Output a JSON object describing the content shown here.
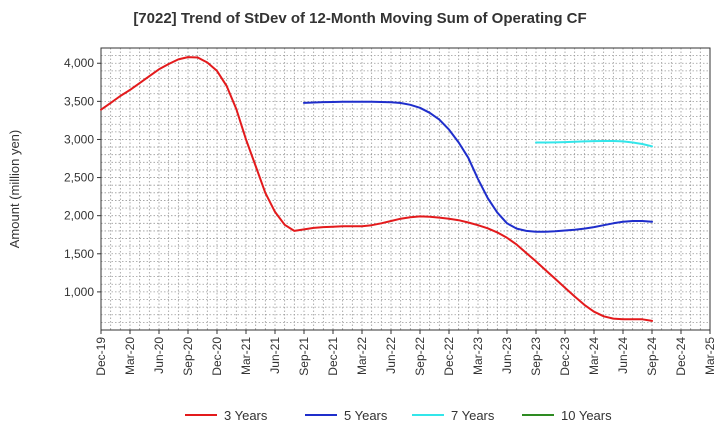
{
  "chart_data": {
    "type": "line",
    "title": "[7022]  Trend of StDev of 12-Month Moving Sum of Operating CF",
    "ylabel": "Amount (million yen)",
    "xlabel": "",
    "ylim": [
      500,
      4200
    ],
    "yticks": [
      1000,
      1500,
      2000,
      2500,
      3000,
      3500,
      4000
    ],
    "ytick_labels": [
      "1,000",
      "1,500",
      "2,000",
      "2,500",
      "3,000",
      "3,500",
      "4,000"
    ],
    "xticks": [
      "Dec-19",
      "Mar-20",
      "Jun-20",
      "Sep-20",
      "Dec-20",
      "Mar-21",
      "Jun-21",
      "Sep-21",
      "Dec-21",
      "Mar-22",
      "Jun-22",
      "Sep-22",
      "Dec-22",
      "Mar-23",
      "Jun-23",
      "Sep-23",
      "Dec-23",
      "Mar-24",
      "Jun-24",
      "Sep-24",
      "Dec-24",
      "Mar-25"
    ],
    "grid": true,
    "legend_position": "bottom",
    "series": [
      {
        "name": "3 Years",
        "color": "#e31a1c",
        "x": [
          "Dec-19",
          "Jan-20",
          "Feb-20",
          "Mar-20",
          "Apr-20",
          "May-20",
          "Jun-20",
          "Jul-20",
          "Aug-20",
          "Sep-20",
          "Oct-20",
          "Nov-20",
          "Dec-20",
          "Jan-21",
          "Feb-21",
          "Mar-21",
          "Apr-21",
          "May-21",
          "Jun-21",
          "Jul-21",
          "Aug-21",
          "Sep-21",
          "Oct-21",
          "Nov-21",
          "Dec-21",
          "Jan-22",
          "Feb-22",
          "Mar-22",
          "Apr-22",
          "May-22",
          "Jun-22",
          "Jul-22",
          "Aug-22",
          "Sep-22",
          "Oct-22",
          "Nov-22",
          "Dec-22",
          "Jan-23",
          "Feb-23",
          "Mar-23",
          "Apr-23",
          "May-23",
          "Jun-23",
          "Jul-23",
          "Aug-23",
          "Sep-23",
          "Oct-23",
          "Nov-23",
          "Dec-23",
          "Jan-24",
          "Feb-24",
          "Mar-24",
          "Apr-24",
          "May-24",
          "Jun-24",
          "Jul-24",
          "Aug-24",
          "Sep-24"
        ],
        "values": [
          3390,
          3480,
          3570,
          3650,
          3740,
          3830,
          3920,
          3990,
          4050,
          4080,
          4075,
          4010,
          3900,
          3700,
          3400,
          3000,
          2650,
          2300,
          2050,
          1880,
          1800,
          1820,
          1840,
          1850,
          1855,
          1860,
          1860,
          1860,
          1875,
          1900,
          1930,
          1960,
          1980,
          1990,
          1985,
          1975,
          1960,
          1940,
          1910,
          1875,
          1835,
          1780,
          1710,
          1620,
          1510,
          1400,
          1285,
          1170,
          1055,
          940,
          830,
          740,
          680,
          650,
          640,
          640,
          640,
          620
        ]
      },
      {
        "name": "5 Years",
        "color": "#1f2ecb",
        "x": [
          "Sep-21",
          "Oct-21",
          "Nov-21",
          "Dec-21",
          "Jan-22",
          "Feb-22",
          "Mar-22",
          "Apr-22",
          "May-22",
          "Jun-22",
          "Jul-22",
          "Aug-22",
          "Sep-22",
          "Oct-22",
          "Nov-22",
          "Dec-22",
          "Jan-23",
          "Feb-23",
          "Mar-23",
          "Apr-23",
          "May-23",
          "Jun-23",
          "Jul-23",
          "Aug-23",
          "Sep-23",
          "Oct-23",
          "Nov-23",
          "Dec-23",
          "Jan-24",
          "Feb-24",
          "Mar-24",
          "Apr-24",
          "May-24",
          "Jun-24",
          "Jul-24",
          "Aug-24",
          "Sep-24"
        ],
        "values": [
          3480,
          3485,
          3490,
          3492,
          3494,
          3495,
          3495,
          3494,
          3492,
          3488,
          3478,
          3455,
          3415,
          3350,
          3260,
          3130,
          2960,
          2760,
          2480,
          2230,
          2040,
          1900,
          1830,
          1800,
          1790,
          1790,
          1795,
          1805,
          1815,
          1830,
          1850,
          1875,
          1900,
          1920,
          1930,
          1930,
          1920
        ]
      },
      {
        "name": "7 Years",
        "color": "#33e6ea",
        "x": [
          "Sep-23",
          "Oct-23",
          "Nov-23",
          "Dec-23",
          "Jan-24",
          "Feb-24",
          "Mar-24",
          "Apr-24",
          "May-24",
          "Jun-24",
          "Jul-24",
          "Aug-24",
          "Sep-24"
        ],
        "values": [
          2960,
          2960,
          2962,
          2965,
          2970,
          2975,
          2978,
          2980,
          2980,
          2975,
          2960,
          2940,
          2910
        ]
      },
      {
        "name": "10 Years",
        "color": "#2e8b22",
        "x": [],
        "values": []
      }
    ]
  }
}
